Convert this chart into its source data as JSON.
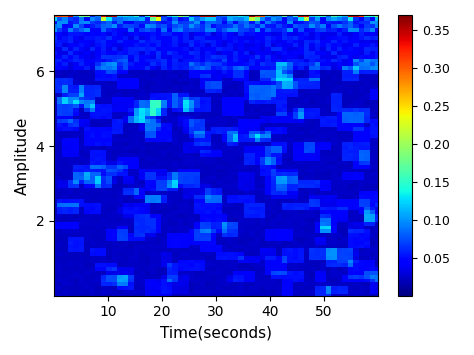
{
  "title": "",
  "xlabel": "Time(seconds)",
  "ylabel": "Amplitude",
  "xlim": [
    0,
    60
  ],
  "ylim": [
    0,
    7.5
  ],
  "xticks": [
    10,
    20,
    30,
    40,
    50
  ],
  "yticks": [
    2,
    4,
    6
  ],
  "colormap": "jet",
  "vmin": 0.0,
  "vmax": 0.37,
  "cbar_ticks": [
    0.05,
    0.1,
    0.15,
    0.2,
    0.25,
    0.3,
    0.35
  ],
  "time_steps": 60,
  "amp_steps": 75,
  "base_value": 0.04,
  "noise_scale": 0.025,
  "bottom_band_value": 0.38,
  "bottom_band_height": 2,
  "second_band_height": 3,
  "figsize": [
    4.74,
    3.55
  ],
  "dpi": 100,
  "background_color": "#ffffff"
}
